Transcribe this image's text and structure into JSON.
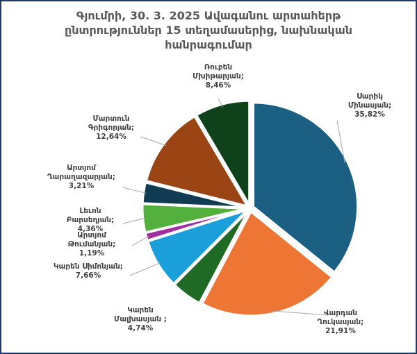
{
  "chart_data": {
    "type": "pie",
    "title": "Գյումրի, 30. 3. 2025 Ավագանու արտահերթ ընտրություններ 15 տեղամասերից, նախնական հանրագումար",
    "title_lines": [
      "Գյումրի, 30. 3. 2025 Ավագանու արտահերթ",
      "ընտրություններ 15 տեղամասերից, նախնական",
      "հանրագումար"
    ],
    "slices": [
      {
        "name": [
          "Սարիկ",
          "Մինասյան;"
        ],
        "value": 35.82,
        "label": "35,82%",
        "color": "#1b5f82"
      },
      {
        "name": [
          "Վարդան",
          "Ղուկասյան;"
        ],
        "value": 21.91,
        "label": "21,91%",
        "color": "#ed7634"
      },
      {
        "name": [
          "Կարեն",
          "Մալխասյան ;"
        ],
        "value": 4.74,
        "label": "4,74%",
        "color": "#1f6b25"
      },
      {
        "name": [
          "Կարեն Սիմոնյան;"
        ],
        "value": 7.66,
        "label": "7,66%",
        "color": "#1a9fdb"
      },
      {
        "name": [
          "Արտյոմ",
          "Թումանյան;"
        ],
        "value": 1.19,
        "label": "1,19%",
        "color": "#a0309e"
      },
      {
        "name": [
          "Լեւոն",
          "Բարսեղյան;"
        ],
        "value": 4.36,
        "label": "4,36%",
        "color": "#54b03c"
      },
      {
        "name": [
          "Արտյոմ",
          "Ղարաղազարյան;"
        ],
        "value": 3.21,
        "label": "3,21%",
        "color": "#113b52"
      },
      {
        "name": [
          "Մարտուն",
          "Գրիգորյան;"
        ],
        "value": 12.64,
        "label": "12,64%",
        "color": "#9b4515"
      },
      {
        "name": [
          "Ռուբեն",
          "Մխիթարյան;"
        ],
        "value": 8.46,
        "label": "8,46%",
        "color": "#0f421b"
      }
    ]
  }
}
